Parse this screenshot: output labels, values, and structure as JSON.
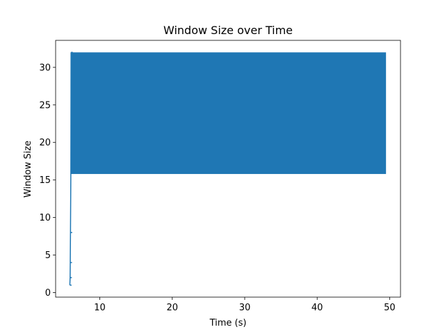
{
  "chart_data": {
    "type": "line",
    "title": "Window Size over Time",
    "xlabel": "Time (s)",
    "ylabel": "Window Size",
    "xlim": [
      3.9,
      51.5
    ],
    "ylim": [
      -0.6,
      33.6
    ],
    "xticks": [
      10,
      20,
      30,
      40,
      50
    ],
    "yticks": [
      0,
      5,
      10,
      15,
      20,
      25,
      30
    ],
    "grid": false,
    "color": "#1f77b4",
    "series": [
      {
        "startup": {
          "x": [
            5.86,
            5.9,
            5.92,
            5.95,
            6.0,
            6.03
          ],
          "y": [
            1,
            2,
            4,
            8,
            16,
            32
          ]
        },
        "oscillation": {
          "x_start": 6.03,
          "x_end": 49.5,
          "y_high": 32,
          "y_low": 15.8
        }
      }
    ]
  }
}
